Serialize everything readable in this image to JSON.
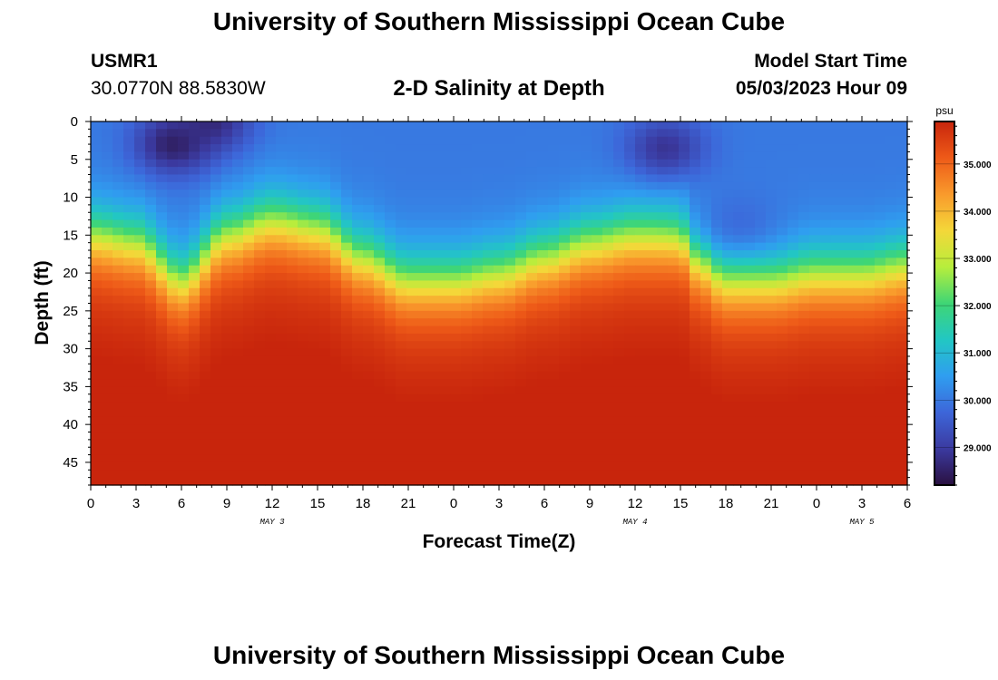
{
  "header": {
    "title": "University of Southern Mississippi Ocean Cube",
    "station_id": "USMR1",
    "coords": "30.0770N  88.5830W",
    "subtitle": "2-D Salinity at Depth",
    "model_start_label": "Model Start Time",
    "model_start_value": "05/03/2023 Hour 09"
  },
  "footer": {
    "title": "University of Southern Mississippi Ocean Cube"
  },
  "chart_data": {
    "type": "heatmap",
    "title": "2-D Salinity at Depth",
    "xlabel": "Forecast Time(Z)",
    "ylabel": "Depth (ft)",
    "x_ticks": [
      "0",
      "3",
      "6",
      "9",
      "12",
      "15",
      "18",
      "21",
      "0",
      "3",
      "6",
      "9",
      "12",
      "15",
      "18",
      "21",
      "0",
      "3",
      "6"
    ],
    "x_range_hours": [
      0,
      54
    ],
    "date_labels": [
      {
        "hour": 12,
        "label": "MAY 3"
      },
      {
        "hour": 36,
        "label": "MAY 4"
      },
      {
        "hour": 51,
        "label": "MAY 5"
      }
    ],
    "y_ticks": [
      "0",
      "5",
      "10",
      "15",
      "20",
      "25",
      "30",
      "35",
      "40",
      "45"
    ],
    "ylim": [
      0,
      48
    ],
    "colorbar": {
      "unit": "psu",
      "range": [
        28.2,
        35.9
      ],
      "tick_labels": [
        "35.000",
        "34.000",
        "33.000",
        "32.000",
        "31.000",
        "30.000",
        "29.000"
      ],
      "tick_values": [
        35,
        34,
        33,
        32,
        31,
        30,
        29
      ],
      "colors": [
        "#2a1040",
        "#3b3aa0",
        "#3d66d9",
        "#2f9ef0",
        "#22c7c3",
        "#3fd675",
        "#b7ee3c",
        "#f4d739",
        "#f99a2c",
        "#ee5a18",
        "#c8250c"
      ]
    },
    "halocline_depth_by_hour": [
      {
        "hour": 0,
        "depth": 15
      },
      {
        "hour": 3,
        "depth": 16
      },
      {
        "hour": 6,
        "depth": 21
      },
      {
        "hour": 9,
        "depth": 15
      },
      {
        "hour": 12,
        "depth": 13
      },
      {
        "hour": 15,
        "depth": 14
      },
      {
        "hour": 18,
        "depth": 18
      },
      {
        "hour": 21,
        "depth": 21
      },
      {
        "hour": 24,
        "depth": 21
      },
      {
        "hour": 27,
        "depth": 20
      },
      {
        "hour": 30,
        "depth": 18
      },
      {
        "hour": 33,
        "depth": 16
      },
      {
        "hour": 36,
        "depth": 15
      },
      {
        "hour": 39,
        "depth": 15
      },
      {
        "hour": 40,
        "depth": 18
      },
      {
        "hour": 42,
        "depth": 21
      },
      {
        "hour": 45,
        "depth": 21
      },
      {
        "hour": 48,
        "depth": 20
      },
      {
        "hour": 51,
        "depth": 20
      },
      {
        "hour": 54,
        "depth": 19
      }
    ],
    "fresh_patches": [
      {
        "hour": 5.5,
        "depth": 3,
        "min_psu": 28.4
      },
      {
        "hour": 8,
        "depth": 0,
        "min_psu": 28.6
      },
      {
        "hour": 38,
        "depth": 3.5,
        "min_psu": 28.8
      },
      {
        "hour": 43,
        "depth": 13,
        "min_psu": 29.8
      }
    ],
    "salty_patches": [
      {
        "hour": 5.5,
        "depth": 46,
        "max_psu": 36.0
      }
    ],
    "surface_psu": 30.0,
    "bottom_psu": 35.6
  }
}
